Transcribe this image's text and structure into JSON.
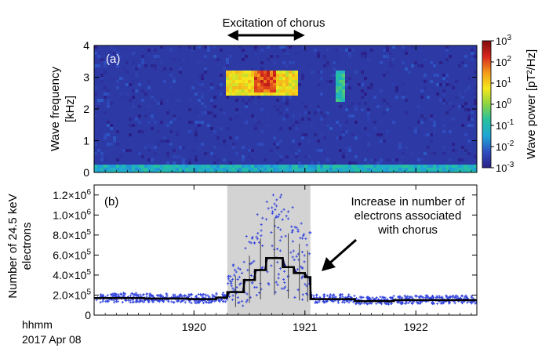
{
  "colors": {
    "scatter": "#3344dd",
    "step": "#000000",
    "trend": "#0a0a55",
    "shade": "#d3d3d3",
    "cmap": [
      "#2b1f87",
      "#2f4fc0",
      "#1ea6d6",
      "#25c0a0",
      "#8cd443",
      "#f5e81c",
      "#f39a1a",
      "#d7261e",
      "#7f0c0c"
    ]
  },
  "chart_data": [
    {
      "type": "heatmap",
      "panel_label": "(a)",
      "annotation": "Excitation of chorus",
      "annotation_range": [
        1920.3,
        1921.0
      ],
      "ylabel_line1": "Wave frequency",
      "ylabel_line2": "[kHz]",
      "x_range": [
        1919.1,
        1922.55
      ],
      "ylim": [
        0,
        4
      ],
      "yticks": [
        "0",
        "1",
        "2",
        "3",
        "4"
      ],
      "features": [
        {
          "description": "background",
          "power_log10": -2.6
        },
        {
          "x": [
            1919.1,
            1922.55
          ],
          "y": [
            0,
            0.2
          ],
          "power_log10": -1.2
        },
        {
          "x": [
            1920.3,
            1920.95
          ],
          "y": [
            2.4,
            3.2
          ],
          "power_log10": 0.8
        },
        {
          "x": [
            1920.55,
            1920.75
          ],
          "y": [
            2.5,
            3.2
          ],
          "power_log10": 2.0
        },
        {
          "x": [
            1921.27,
            1921.37
          ],
          "y": [
            2.2,
            3.2
          ],
          "power_log10": -0.8
        }
      ],
      "colorbar": {
        "label": "Wave power [pT²/Hz]",
        "ticks": [
          {
            "base": "10",
            "exp": "3"
          },
          {
            "base": "10",
            "exp": "2"
          },
          {
            "base": "10",
            "exp": "1"
          },
          {
            "base": "10",
            "exp": "0"
          },
          {
            "base": "10",
            "exp": "-1"
          },
          {
            "base": "10",
            "exp": "-2"
          },
          {
            "base": "10",
            "exp": "-3"
          }
        ],
        "range_log10": [
          -3,
          3
        ]
      }
    },
    {
      "type": "line",
      "panel_label": "(b)",
      "ylabel_line1": "Number of 24.5 keV",
      "ylabel_line2": "electrons",
      "ylim": [
        0,
        1300000
      ],
      "yticks": [
        {
          "mant": "1.2×10",
          "exp": "6"
        },
        {
          "mant": "1.0×10",
          "exp": "6"
        },
        {
          "mant": "8.0×10",
          "exp": "5"
        },
        {
          "mant": "6.0×10",
          "exp": "5"
        },
        {
          "mant": "4.0×10",
          "exp": "5"
        },
        {
          "mant": "2.0×10",
          "exp": "5"
        },
        {
          "mant": "0",
          "exp": ""
        }
      ],
      "shaded_interval": [
        1920.3,
        1921.05
      ],
      "annotation_lines": [
        "Increase in number of",
        "electrons associated",
        "with chorus"
      ],
      "series": [
        {
          "kind": "step",
          "x": [
            1919.1,
            1919.55,
            1919.95,
            1920.2,
            1920.3,
            1920.45,
            1920.55,
            1920.65,
            1920.8,
            1920.9,
            1921.0,
            1921.05,
            1921.45,
            1921.8,
            1922.55
          ],
          "y": [
            170000,
            165000,
            160000,
            175000,
            230000,
            350000,
            450000,
            570000,
            480000,
            420000,
            380000,
            160000,
            140000,
            150000,
            160000
          ]
        },
        {
          "kind": "scatter",
          "description": "individual measurements, roughly 2e5 outside interval, up to 1.2e6 within",
          "x_range": [
            1919.1,
            1922.55
          ],
          "inside_peak": 1200000
        }
      ]
    }
  ],
  "xaxis": {
    "range": [
      1919.1,
      1922.55
    ],
    "ticks": [
      "1920",
      "1921",
      "1922"
    ],
    "corner_label_line1": "hhmm",
    "corner_label_line2": "2017 Apr 08"
  }
}
